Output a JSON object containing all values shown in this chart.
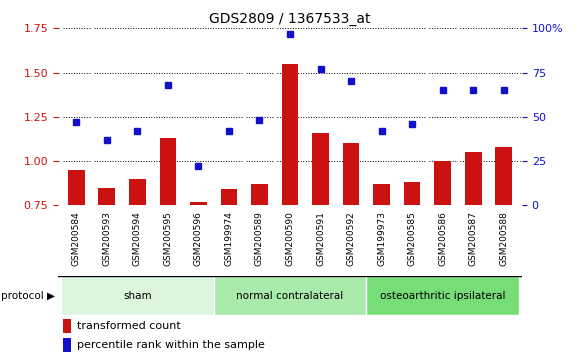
{
  "title": "GDS2809 / 1367533_at",
  "samples": [
    "GSM200584",
    "GSM200593",
    "GSM200594",
    "GSM200595",
    "GSM200596",
    "GSM199974",
    "GSM200589",
    "GSM200590",
    "GSM200591",
    "GSM200592",
    "GSM199973",
    "GSM200585",
    "GSM200586",
    "GSM200587",
    "GSM200588"
  ],
  "transformed_count": [
    0.95,
    0.85,
    0.9,
    1.13,
    0.77,
    0.84,
    0.87,
    1.55,
    1.16,
    1.1,
    0.87,
    0.88,
    1.0,
    1.05,
    1.08
  ],
  "percentile_rank": [
    47,
    37,
    42,
    68,
    22,
    42,
    48,
    97,
    77,
    70,
    42,
    46,
    65,
    65,
    65
  ],
  "groups": [
    {
      "label": "sham",
      "start": 0,
      "end": 5
    },
    {
      "label": "normal contralateral",
      "start": 5,
      "end": 10
    },
    {
      "label": "osteoarthritic ipsilateral",
      "start": 10,
      "end": 15
    }
  ],
  "group_colors": [
    "#ddf5dd",
    "#aaeaaa",
    "#77dd77"
  ],
  "bar_color": "#cc1111",
  "dot_color": "#1111cc",
  "ylim_left": [
    0.75,
    1.75
  ],
  "ylim_right": [
    0,
    100
  ],
  "yticks_left": [
    0.75,
    1.0,
    1.25,
    1.5,
    1.75
  ],
  "yticks_right": [
    0,
    25,
    50,
    75,
    100
  ],
  "ytick_labels_right": [
    "0",
    "25",
    "50",
    "75",
    "100%"
  ],
  "xtick_bg": "#cccccc",
  "protocol_label": "protocol",
  "legend_bar_label": "transformed count",
  "legend_dot_label": "percentile rank within the sample",
  "title_fontsize": 10,
  "tick_fontsize": 8,
  "label_fontsize": 8
}
